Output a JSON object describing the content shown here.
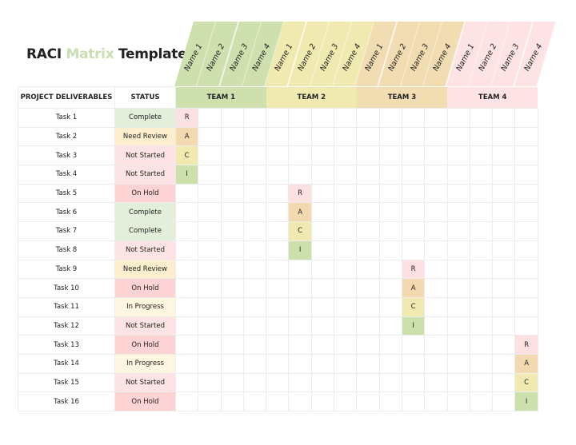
{
  "title": {
    "part1": "RACI ",
    "part2": "Matrix",
    "part3": " Template"
  },
  "colors": {
    "team1": "#cde0ae",
    "team2": "#f0eab0",
    "team3": "#f2dcb2",
    "team4": "#fde3e3",
    "R": "#fde1e1",
    "A": "#f2d9b0",
    "C": "#f0eab0",
    "I": "#cce0ac",
    "Complete": "#e3efdb",
    "Need Review": "#fdefcd",
    "Not Started": "#fde3e3",
    "On Hold": "#fdd3d3",
    "In Progress": "#fef6df"
  },
  "headers": {
    "deliverables": "PROJECT DELIVERABLES",
    "status": "STATUS"
  },
  "teams": [
    {
      "label": "TEAM 1",
      "names": [
        "Name 1",
        "Name 2",
        "Name 3",
        "Name 4"
      ]
    },
    {
      "label": "TEAM 2",
      "names": [
        "Name 1",
        "Name 2",
        "Name 3",
        "Name 4"
      ]
    },
    {
      "label": "TEAM 3",
      "names": [
        "Name 1",
        "Name 2",
        "Name 3",
        "Name 4"
      ]
    },
    {
      "label": "TEAM 4",
      "names": [
        "Name 1",
        "Name 2",
        "Name 3",
        "Name 4"
      ]
    }
  ],
  "rows": [
    {
      "task": "Task 1",
      "status": "Complete",
      "raci": {
        "col": 0,
        "value": "R"
      }
    },
    {
      "task": "Task 2",
      "status": "Need Review",
      "raci": {
        "col": 0,
        "value": "A"
      }
    },
    {
      "task": "Task 3",
      "status": "Not Started",
      "raci": {
        "col": 0,
        "value": "C"
      }
    },
    {
      "task": "Task 4",
      "status": "Not Started",
      "raci": {
        "col": 0,
        "value": "I"
      }
    },
    {
      "task": "Task 5",
      "status": "On Hold",
      "raci": {
        "col": 5,
        "value": "R"
      }
    },
    {
      "task": "Task 6",
      "status": "Complete",
      "raci": {
        "col": 5,
        "value": "A"
      }
    },
    {
      "task": "Task 7",
      "status": "Complete",
      "raci": {
        "col": 5,
        "value": "C"
      }
    },
    {
      "task": "Task 8",
      "status": "Not Started",
      "raci": {
        "col": 5,
        "value": "I"
      }
    },
    {
      "task": "Task 9",
      "status": "Need Review",
      "raci": {
        "col": 10,
        "value": "R"
      }
    },
    {
      "task": "Task 10",
      "status": "On Hold",
      "raci": {
        "col": 10,
        "value": "A"
      }
    },
    {
      "task": "Task 11",
      "status": "In Progress",
      "raci": {
        "col": 10,
        "value": "C"
      }
    },
    {
      "task": "Task 12",
      "status": "Not Started",
      "raci": {
        "col": 10,
        "value": "I"
      }
    },
    {
      "task": "Task 13",
      "status": "On Hold",
      "raci": {
        "col": 15,
        "value": "R"
      }
    },
    {
      "task": "Task 14",
      "status": "In Progress",
      "raci": {
        "col": 15,
        "value": "A"
      }
    },
    {
      "task": "Task 15",
      "status": "Not Started",
      "raci": {
        "col": 15,
        "value": "C"
      }
    },
    {
      "task": "Task 16",
      "status": "On Hold",
      "raci": {
        "col": 15,
        "value": "I"
      }
    }
  ]
}
